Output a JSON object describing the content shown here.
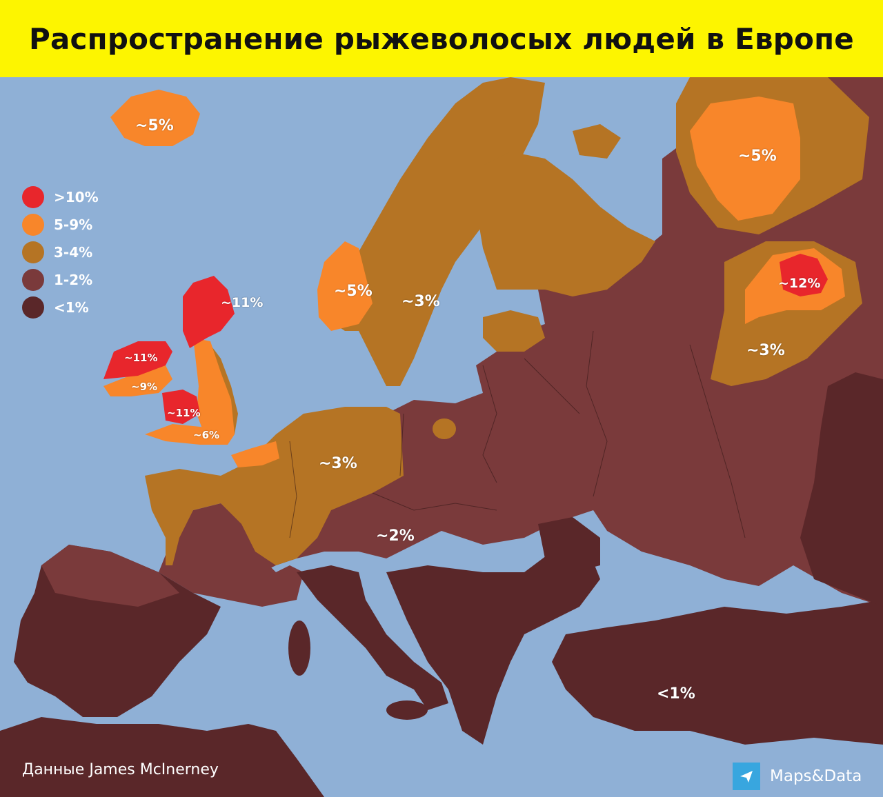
{
  "title": "Распространение рыжеволосых людей в Европе",
  "colors": {
    "sea": "#8fb0d6",
    "band_over_10": "#e8262c",
    "band_5_9": "#f8862a",
    "band_3_4": "#b57424",
    "band_1_2": "#7a3a3b",
    "band_under_1": "#5a2729",
    "title_background": "#fdf500"
  },
  "legend": {
    "items": [
      {
        "label": ">10%",
        "color": "#e8262c"
      },
      {
        "label": "5-9%",
        "color": "#f8862a"
      },
      {
        "label": "3-4%",
        "color": "#b57424"
      },
      {
        "label": "1-2%",
        "color": "#7a3a3b"
      },
      {
        "label": "<1%",
        "color": "#5a2729"
      }
    ]
  },
  "region_labels": {
    "iceland": "~5%",
    "scotland": "~11%",
    "ireland_north": "~11%",
    "ireland_south": "~9%",
    "wales": "~11%",
    "england_south": "~6%",
    "norway": "~5%",
    "sweden": "~3%",
    "germany": "~3%",
    "central_europe": "~2%",
    "north_russia": "~5%",
    "volga_udmurtia": "~12%",
    "volga_region": "~3%",
    "turkey": "<1%"
  },
  "credit": "Данные James McInerney",
  "brand": {
    "name": "Maps&Data",
    "icon": "paper-plane-icon"
  }
}
